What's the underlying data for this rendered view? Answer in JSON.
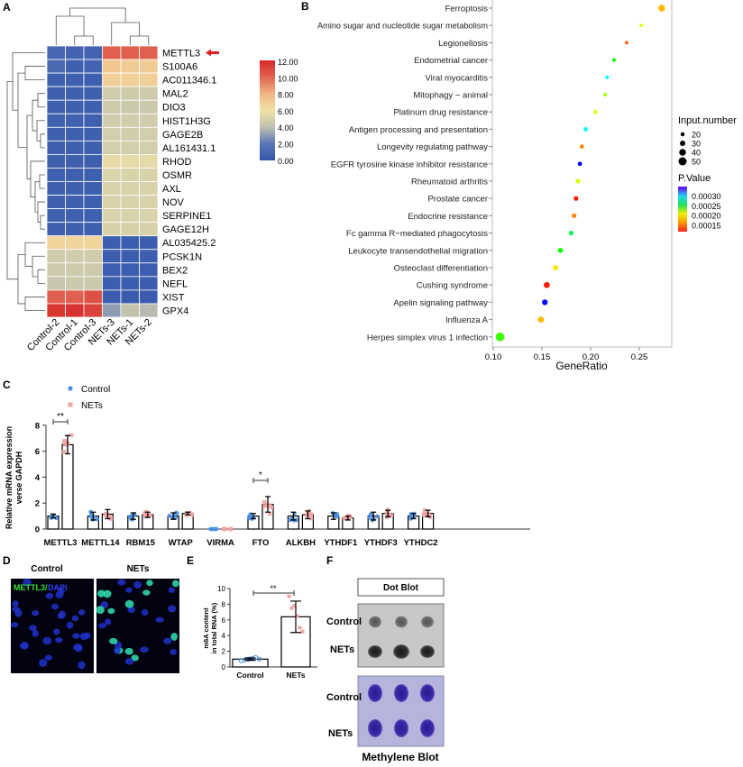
{
  "panels": {
    "A": "A",
    "B": "B",
    "C": "C",
    "D": "D",
    "E": "E",
    "F": "F"
  },
  "colors": {
    "control": "#4a90e2",
    "nets": "#f4a3a3",
    "heat_low": "#3355aa",
    "heat_mid": "#f0e3a6",
    "heat_high": "#d62828"
  },
  "chart_data": [
    {
      "type": "heatmap",
      "columns": [
        "Control-2",
        "Control-1",
        "Control-3",
        "NETs-3",
        "NETs-1",
        "NETs-2"
      ],
      "rows": [
        "METTL3",
        "S100A6",
        "AC011346.1",
        "MAL2",
        "DIO3",
        "HIST1H3G",
        "GAGE2B",
        "AL161431.1",
        "RHOD",
        "OSMR",
        "AXL",
        "NOV",
        "SERPINE1",
        "GAGE12H",
        "AL035425.2",
        "PCSK1N",
        "BEX2",
        "NEFL",
        "XIST",
        "GPX4"
      ],
      "highlighted_row": "METTL3",
      "values": [
        [
          1.0,
          0.8,
          0.8,
          10.0,
          10.0,
          10.0
        ],
        [
          1.2,
          0.6,
          0.8,
          7.2,
          7.0,
          7.0
        ],
        [
          0.6,
          0.6,
          0.6,
          6.8,
          6.8,
          6.8
        ],
        [
          0.6,
          0.6,
          0.6,
          4.6,
          4.5,
          4.5
        ],
        [
          0.6,
          0.6,
          0.6,
          4.5,
          4.4,
          4.4
        ],
        [
          0.6,
          0.6,
          0.6,
          4.6,
          4.6,
          4.6
        ],
        [
          0.6,
          0.6,
          0.6,
          4.7,
          4.6,
          4.7
        ],
        [
          0.6,
          0.6,
          0.6,
          4.7,
          4.7,
          4.7
        ],
        [
          0.6,
          0.6,
          0.6,
          5.6,
          5.5,
          5.5
        ],
        [
          0.6,
          0.6,
          0.6,
          5.1,
          5.0,
          5.0
        ],
        [
          0.6,
          0.6,
          0.6,
          5.0,
          5.0,
          5.0
        ],
        [
          0.6,
          0.6,
          0.6,
          5.0,
          5.0,
          5.0
        ],
        [
          0.6,
          0.6,
          0.6,
          5.0,
          5.0,
          5.0
        ],
        [
          0.6,
          0.6,
          0.6,
          4.9,
          4.9,
          4.9
        ],
        [
          6.6,
          6.6,
          6.6,
          0.5,
          0.5,
          0.5
        ],
        [
          4.6,
          4.6,
          4.6,
          0.5,
          0.5,
          0.5
        ],
        [
          4.5,
          4.5,
          4.5,
          0.5,
          0.5,
          0.5
        ],
        [
          4.2,
          4.4,
          4.4,
          0.5,
          0.5,
          0.5
        ],
        [
          10.0,
          10.0,
          10.5,
          0.4,
          0.4,
          0.4
        ],
        [
          11.5,
          11.6,
          11.0,
          3.0,
          4.0,
          3.8
        ]
      ],
      "colorbar_ticks": [
        "12.00",
        "10.00",
        "8.00",
        "6.00",
        "4.00",
        "2.00",
        "0.00"
      ],
      "range": [
        0,
        12
      ]
    },
    {
      "type": "scatter",
      "xlabel": "GeneRatio",
      "xlim": [
        0.1,
        0.28
      ],
      "xticks": [
        "0.10",
        "0.15",
        "0.20",
        "0.25"
      ],
      "categories": [
        "Ferroptosis",
        "Amino sugar and nucleotide sugar metabolism",
        "Legionellosis",
        "Endometrial cancer",
        "Viral myocarditis",
        "Mitophagy − animal",
        "Platinum drug resistance",
        "Antigen processing and presentation",
        "Longevity regulating pathway",
        "EGFR tyrosine kinase inhibitor resistance",
        "Rheumatoid arthritis",
        "Prostate cancer",
        "Endocrine resistance",
        "Fc gamma R−mediated phagocytosis",
        "Leukocyte transendothelial migration",
        "Osteoclast differentiation",
        "Cushing syndrome",
        "Apelin signaling pathway",
        "Influenza A",
        "Herpes simplex virus 1 infection"
      ],
      "gene_ratio": [
        0.273,
        0.252,
        0.237,
        0.224,
        0.217,
        0.215,
        0.205,
        0.195,
        0.191,
        0.189,
        0.187,
        0.185,
        0.183,
        0.18,
        0.169,
        0.164,
        0.155,
        0.153,
        0.149,
        0.107
      ],
      "input_number": [
        40,
        15,
        15,
        18,
        18,
        18,
        20,
        22,
        22,
        22,
        25,
        25,
        25,
        25,
        28,
        30,
        35,
        32,
        35,
        55
      ],
      "p_value": [
        0.00015,
        0.00017,
        0.00013,
        0.00021,
        0.00026,
        0.00018,
        0.00017,
        0.00026,
        0.00014,
        0.00031,
        0.00017,
        0.00012,
        0.00014,
        0.00023,
        0.00021,
        0.00016,
        0.00012,
        0.00031,
        0.00015,
        0.0002
      ],
      "legend": {
        "size_title": "Input.number",
        "size_values": [
          "20",
          "30",
          "40",
          "50"
        ],
        "color_title": "P.Value",
        "color_ticks": [
          "0.00030",
          "0.00025",
          "0.00020",
          "0.00015"
        ],
        "color_range": [
          0.000115,
          0.00033
        ],
        "placement": "right"
      }
    },
    {
      "type": "bar",
      "ylabel": [
        "Relative mRNA expression",
        "verse GAPDH"
      ],
      "ylim": [
        0,
        8
      ],
      "yticks": [
        "0",
        "2",
        "4",
        "6",
        "8"
      ],
      "categories": [
        "METTL3",
        "METTL14",
        "RBM15",
        "WTAP",
        "VIRMA",
        "FTO",
        "ALKBH",
        "YTHDF1",
        "YTHDF3",
        "YTHDC2"
      ],
      "series": [
        {
          "name": "Control",
          "values": [
            1.0,
            1.0,
            1.0,
            1.0,
            0.0,
            1.0,
            1.0,
            1.0,
            1.0,
            1.0
          ],
          "sd": [
            0.15,
            0.3,
            0.25,
            0.25,
            0.0,
            0.2,
            0.3,
            0.25,
            0.3,
            0.2
          ]
        },
        {
          "name": "NETs",
          "values": [
            6.5,
            1.15,
            1.1,
            1.2,
            0.0,
            1.9,
            1.1,
            0.85,
            1.2,
            1.2
          ],
          "sd": [
            0.7,
            0.35,
            0.2,
            0.1,
            0.0,
            0.6,
            0.3,
            0.15,
            0.25,
            0.25
          ]
        }
      ],
      "significance": [
        {
          "category": "METTL3",
          "label": "**"
        },
        {
          "category": "FTO",
          "label": "*"
        }
      ],
      "legend_placement": "top-left"
    },
    {
      "type": "bar",
      "ylabel": [
        "m6A content",
        "in total RNA (%)"
      ],
      "ylim": [
        0,
        10
      ],
      "yticks": [
        "0",
        "2",
        "4",
        "6",
        "8",
        "10"
      ],
      "categories": [
        "Control",
        "NETs"
      ],
      "values": [
        1.0,
        6.4
      ],
      "sd": [
        0.15,
        2.0
      ],
      "points": [
        [
          0.8,
          0.9,
          1.0,
          1.1,
          1.2,
          1.0
        ],
        [
          9.0,
          7.5,
          7.8,
          6.5,
          5.0,
          4.5
        ]
      ],
      "significance": "**"
    }
  ],
  "panel_d": {
    "titles": [
      "Control",
      "NETs"
    ],
    "stain_green": "METTL3/",
    "stain_blue": "DAPI"
  },
  "panel_f": {
    "header": "Dot Blot",
    "rows": [
      "Control",
      "NETs"
    ],
    "footer": "Methylene Blot"
  }
}
